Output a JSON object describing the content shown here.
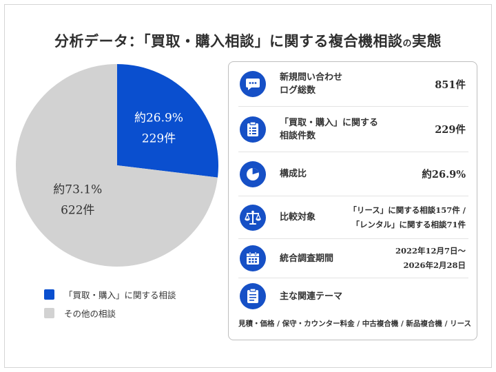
{
  "title": {
    "main": "分析データ：「買取・購入相談」に関する複合機相談",
    "small": "の",
    "tail": "実態"
  },
  "chart_data": {
    "type": "pie",
    "slices": [
      {
        "name": "「買取・購入」に関する相談",
        "value": 229,
        "percent_label": "約26.9%",
        "count_label": "229件",
        "color": "#0a4fcf"
      },
      {
        "name": "その他の相談",
        "value": 622,
        "percent_label": "約73.1%",
        "count_label": "622件",
        "color": "#d2d2d2"
      }
    ]
  },
  "colors": {
    "accent": "#1650c6",
    "other": "#d2d2d2"
  },
  "panel": {
    "rows": [
      {
        "icon": "chat-bubble-icon",
        "label_lines": [
          "新規問い合わせ",
          "ログ総数"
        ],
        "value_lines": [
          "851件"
        ]
      },
      {
        "icon": "clipboard-list-icon",
        "label_lines": [
          "「買取・購入」に関する",
          "相談件数"
        ],
        "value_lines": [
          "229件"
        ]
      },
      {
        "icon": "pie-chart-icon",
        "label_lines": [
          "構成比"
        ],
        "value_lines": [
          "約26.9%"
        ]
      },
      {
        "icon": "balance-scale-icon",
        "label_lines": [
          "比較対象"
        ],
        "value_lines": [
          "「リース」に関する相談157件 /",
          "「レンタル」に関する相談71件"
        ]
      },
      {
        "icon": "calendar-icon",
        "label_lines": [
          "統合調査期間"
        ],
        "value_lines": [
          "2022年12月7日～",
          "2026年2月28日"
        ]
      },
      {
        "icon": "clipboard-icon",
        "label_lines": [
          "主な関連テーマ"
        ],
        "value_lines": []
      }
    ],
    "footer": "見積・価格 / 保守・カウンター料金 / 中古複合機 / 新品複合機 / リース"
  }
}
